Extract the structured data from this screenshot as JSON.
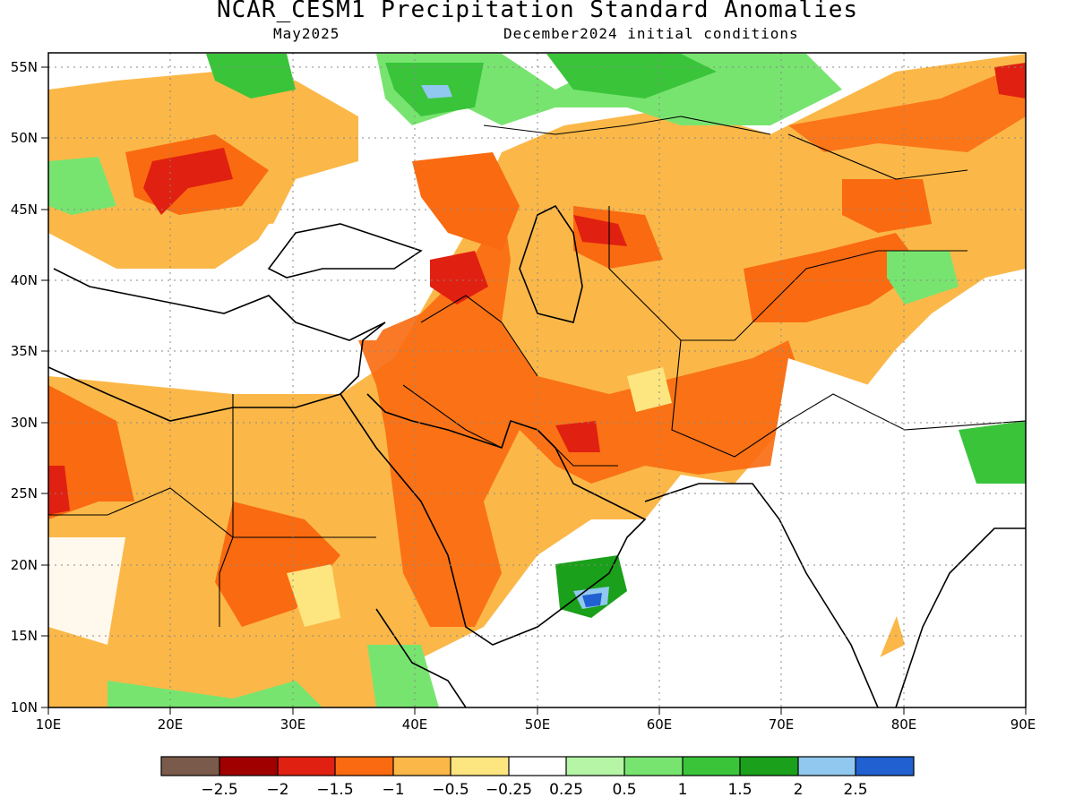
{
  "title": "NCAR_CESM1 Precipitation Standard Anomalies",
  "subtitle_left": "May2025",
  "subtitle_right": "December2024 initial conditions",
  "lat_labels": [
    "55N",
    "50N",
    "45N",
    "40N",
    "35N",
    "30N",
    "25N",
    "20N",
    "15N",
    "10N"
  ],
  "lon_labels": [
    "10E",
    "20E",
    "30E",
    "40E",
    "50E",
    "60E",
    "70E",
    "80E",
    "90E"
  ],
  "lat_values": [
    55,
    50,
    45,
    40,
    35,
    30,
    25,
    20,
    15,
    10
  ],
  "lon_values": [
    10,
    20,
    30,
    40,
    50,
    60,
    70,
    80,
    90
  ],
  "map_extent": {
    "lon_min": 10,
    "lon_max": 90,
    "lat_min": 10,
    "lat_max": 56
  },
  "colorbar": {
    "colors": [
      "#7a5a4a",
      "#a00000",
      "#e02010",
      "#fa6a10",
      "#fbb848",
      "#fde580",
      "#ffffff",
      "#b5f5a5",
      "#78e470",
      "#3ac43a",
      "#1aa01a",
      "#90c8f0",
      "#2060d0"
    ],
    "labels": [
      "−2.5",
      "−2",
      "−1.5",
      "−1",
      "−0.5",
      "−0.25",
      "0.25",
      "0.5",
      "1",
      "1.5",
      "2",
      "2.5"
    ]
  },
  "anomaly_regions": [
    {
      "category": "-1",
      "color": "#fa6a10",
      "lon": [
        46,
        48
      ],
      "lat": [
        20,
        27
      ]
    },
    {
      "category": "-1.5",
      "color": "#e02010",
      "lon": [
        52,
        56
      ],
      "lat": [
        28,
        30
      ]
    },
    {
      "category": "1.5",
      "color": "#1aa01a",
      "lon": [
        54,
        57
      ],
      "lat": [
        17,
        19
      ]
    },
    {
      "category": "2.5",
      "color": "#2060d0",
      "lon": [
        54.5,
        56
      ],
      "lat": [
        16,
        17
      ]
    }
  ]
}
